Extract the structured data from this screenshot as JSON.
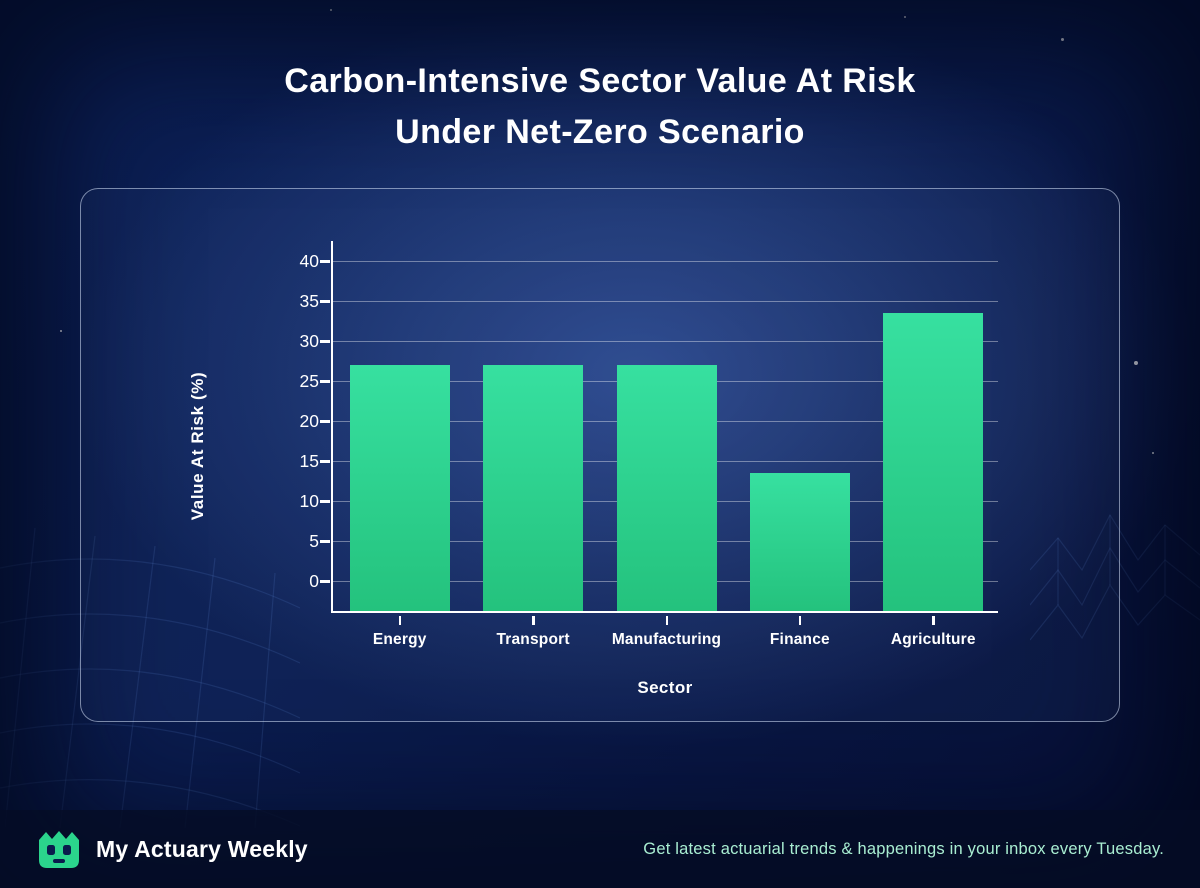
{
  "title": {
    "line1": "Carbon-Intensive Sector Value At Risk",
    "line2": "Under Net-Zero Scenario"
  },
  "chart_data": {
    "type": "bar",
    "title": "Carbon-Intensive Sector Value At Risk Under Net-Zero Scenario",
    "categories": [
      "Energy",
      "Transport",
      "Manufacturing",
      "Finance",
      "Agriculture"
    ],
    "values": [
      26.7,
      26.7,
      26.7,
      13.3,
      33.3
    ],
    "xlabel": "Sector",
    "ylabel": "Value At Risk (%)",
    "ylim": [
      0,
      40
    ],
    "yticks": [
      0,
      5,
      10,
      15,
      20,
      25,
      30,
      35,
      40
    ],
    "grid": true,
    "legend": "none",
    "bar_color_top": "#37e0a0",
    "bar_color_bottom": "#24c27d"
  },
  "footer": {
    "brand": "My Actuary Weekly",
    "tagline": "Get latest actuarial trends & happenings in your inbox every Tuesday.",
    "tagline_color": "#a9eed2",
    "accent_color": "#2bd48c"
  },
  "colors": {
    "background_navy": "#0a1b4c",
    "grid_line": "rgba(255,255,255,0.38)",
    "text_white": "#ffffff"
  }
}
